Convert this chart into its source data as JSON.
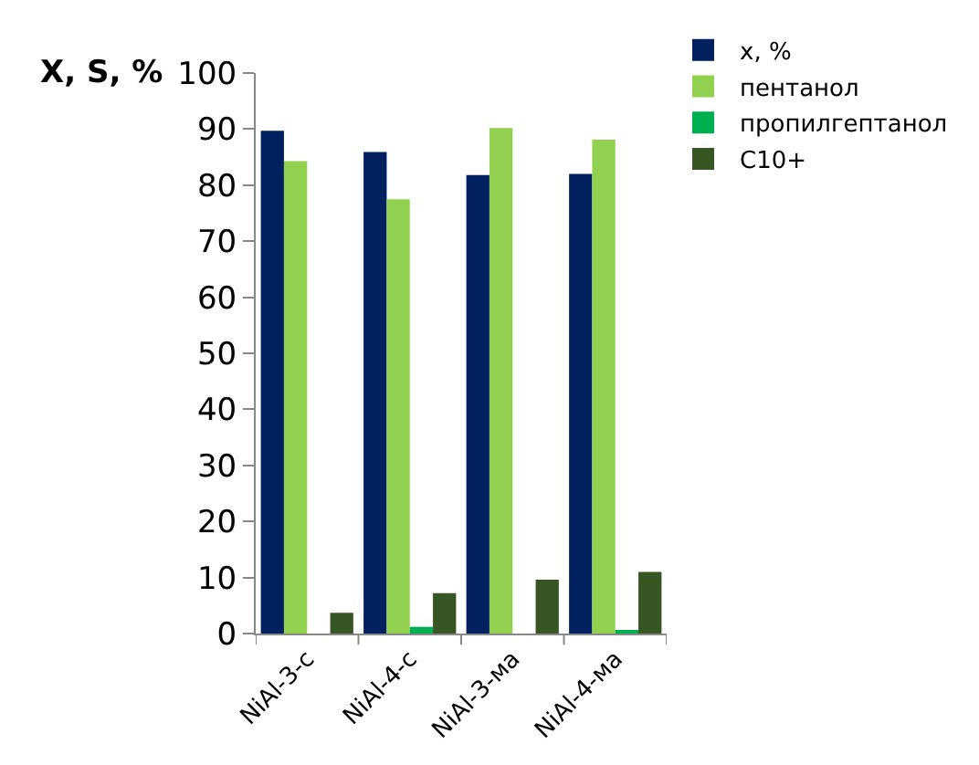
{
  "chart_data": {
    "type": "bar",
    "ylabel": "X, S, %",
    "categories": [
      "NiAl-3-c",
      "NiAl-4-c",
      "NiAl-3-ма",
      "NiAl-4-ма"
    ],
    "series": [
      {
        "name": "x, %",
        "color": "#002060",
        "values": [
          89.7,
          85.9,
          81.8,
          82.0
        ]
      },
      {
        "name": "пентанол",
        "color": "#92d050",
        "values": [
          84.3,
          77.5,
          90.2,
          88.1
        ]
      },
      {
        "name": "пропилгептанол",
        "color": "#00b050",
        "values": [
          0,
          1.2,
          0,
          0.4
        ]
      },
      {
        "name": "C10+",
        "color": "#375623",
        "values": [
          3.7,
          7.2,
          9.6,
          11.0
        ]
      }
    ],
    "ylim": [
      0,
      100
    ],
    "yticks": [
      0,
      10,
      20,
      30,
      40,
      50,
      60,
      70,
      80,
      90,
      100
    ],
    "legend": "top right"
  }
}
